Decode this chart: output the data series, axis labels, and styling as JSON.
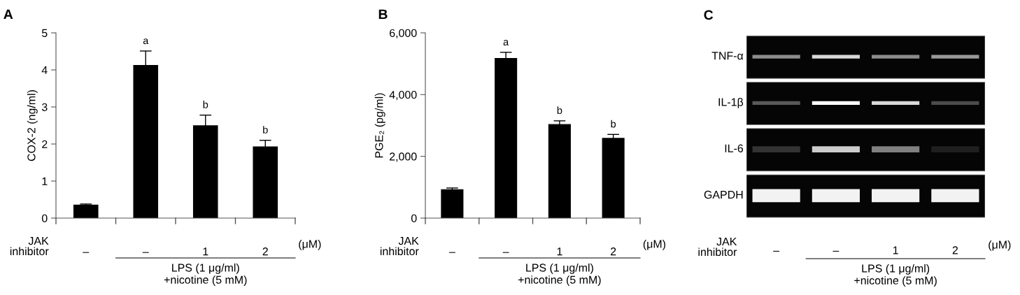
{
  "chart_data": [
    {
      "type": "bar",
      "title": "A",
      "ylabel": "COX-2 (ng/ml)",
      "xlabel": "JAK\ninhibitor",
      "categories": [
        "–",
        "–",
        "1",
        "2"
      ],
      "values": [
        0.35,
        4.12,
        2.49,
        1.92
      ],
      "errors": [
        0.03,
        0.39,
        0.29,
        0.18
      ],
      "color": "#000000",
      "ylim": [
        0,
        5
      ],
      "yticks": [
        0,
        1,
        2,
        3,
        4,
        5
      ],
      "grid": false,
      "value_labels": [
        null,
        "a",
        "b",
        "b"
      ],
      "annotations": [
        "(μM)",
        "LPS (1 μg/ml)\n+nicotine (5 mM)"
      ]
    },
    {
      "type": "bar",
      "title": "B",
      "ylabel": "PGE₂ (pg/ml)",
      "xlabel": "JAK\ninhibitor",
      "categories": [
        "–",
        "–",
        "1",
        "2"
      ],
      "values": [
        920,
        5170,
        3030,
        2580
      ],
      "errors": [
        55,
        200,
        120,
        130
      ],
      "color": "#000000",
      "ylim": [
        0,
        6000
      ],
      "yticks": [
        {
          "value": 0,
          "label": "0"
        },
        {
          "value": 2000,
          "label": "2,000"
        },
        {
          "value": 4000,
          "label": "4,000"
        },
        {
          "value": 6000,
          "label": "6,000"
        }
      ],
      "grid": false,
      "value_labels": [
        null,
        "a",
        "b",
        "b"
      ],
      "annotations": [
        "(μM)",
        "LPS (1 μg/ml)\n+nicotine (5 mM)"
      ]
    },
    {
      "type": "other",
      "title": "C",
      "xlabel": "JAK\ninhibitor",
      "categories": [
        "–",
        "–",
        "1",
        "2"
      ],
      "annotations": [
        "TNF-α",
        "IL-1β",
        "IL-6",
        "GAPDH",
        "(μM)",
        "LPS (1 μg/ml)\n+nicotine (5 mM)"
      ]
    }
  ]
}
